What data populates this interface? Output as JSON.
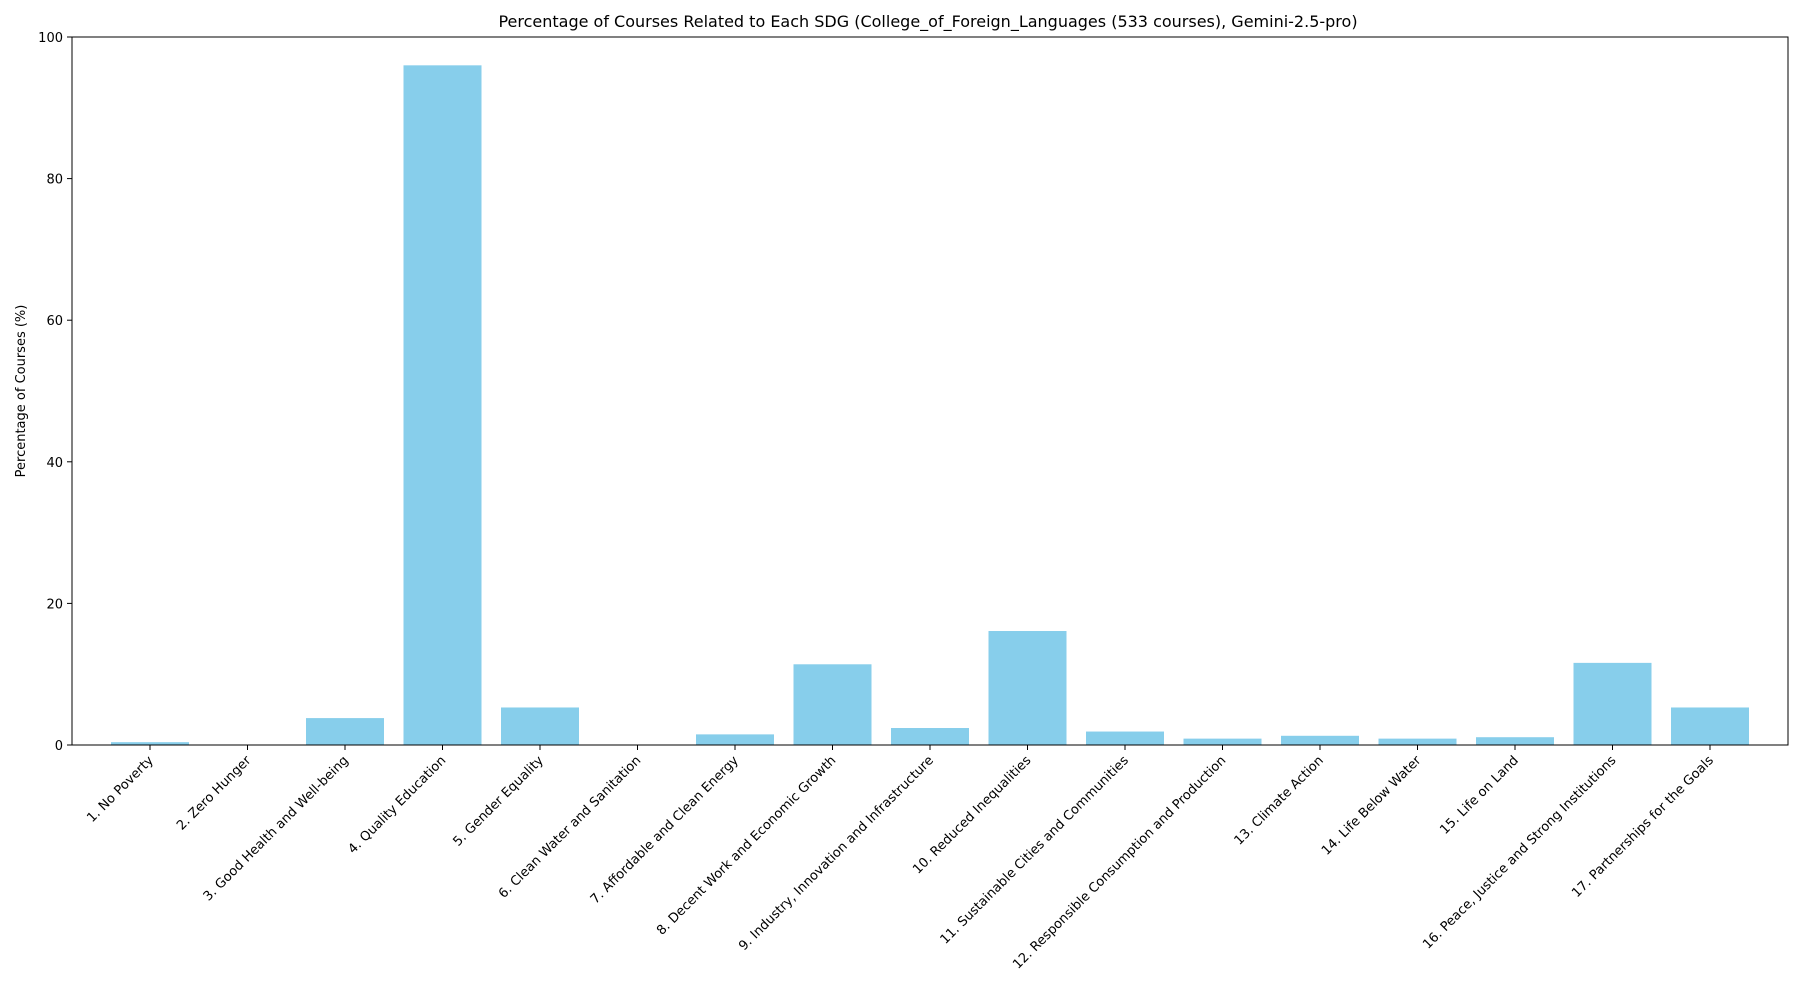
{
  "chart_data": {
    "type": "bar",
    "title": "Percentage of Courses Related to Each SDG (College_of_Foreign_Languages (533 courses), Gemini-2.5-pro)",
    "xlabel": "",
    "ylabel": "Percentage of Courses (%)",
    "ylim": [
      0,
      100
    ],
    "yticks": [
      0,
      20,
      40,
      60,
      80,
      100
    ],
    "grid": false,
    "bar_color": "#87CEEB",
    "categories": [
      "1. No Poverty",
      "2. Zero Hunger",
      "3. Good Health and Well-being",
      "4. Quality Education",
      "5. Gender Equality",
      "6. Clean Water and Sanitation",
      "7. Affordable and Clean Energy",
      "8. Decent Work and Economic Growth",
      "9. Industry, Innovation and Infrastructure",
      "10. Reduced Inequalities",
      "11. Sustainable Cities and Communities",
      "12. Responsible Consumption and Production",
      "13. Climate Action",
      "14. Life Below Water",
      "15. Life on Land",
      "16. Peace, Justice and Strong Institutions",
      "17. Partnerships for the Goals"
    ],
    "values": [
      0.4,
      0.0,
      3.8,
      96.0,
      5.3,
      0.0,
      1.5,
      11.4,
      2.4,
      16.1,
      1.9,
      0.9,
      1.3,
      0.9,
      1.1,
      11.6,
      5.3
    ]
  }
}
